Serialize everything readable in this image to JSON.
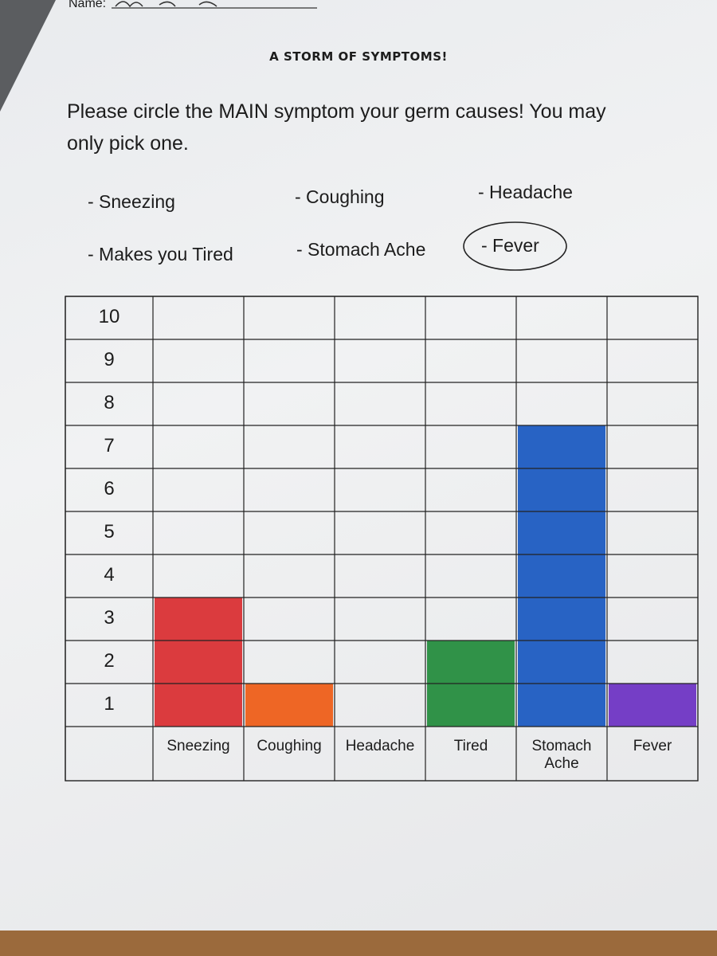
{
  "header": {
    "name_label": "Name:"
  },
  "title": "A STORM OF SYMPTOMS!",
  "instructions": "Please circle the MAIN symptom your germ causes! You may only pick one.",
  "options": [
    {
      "text": "- Sneezing",
      "circled": false
    },
    {
      "text": "- Coughing",
      "circled": false
    },
    {
      "text": "- Headache",
      "circled": false
    },
    {
      "text": "- Makes you Tired",
      "circled": false
    },
    {
      "text": "- Stomach Ache",
      "circled": false
    },
    {
      "text": "- Fever",
      "circled": true
    }
  ],
  "chart_data": {
    "type": "bar",
    "categories": [
      "Sneezing",
      "Coughing",
      "Headache",
      "Tired",
      "Stomach Ache",
      "Fever"
    ],
    "values": [
      3,
      1,
      0,
      2,
      7,
      1
    ],
    "colors": [
      "#d92b2f",
      "#ee5a14",
      "#ffffff",
      "#1f8a3a",
      "#1757c0",
      "#6a2fc2"
    ],
    "ylim": [
      0,
      10
    ],
    "yticks": [
      1,
      2,
      3,
      4,
      5,
      6,
      7,
      8,
      9,
      10
    ],
    "grid": true
  }
}
